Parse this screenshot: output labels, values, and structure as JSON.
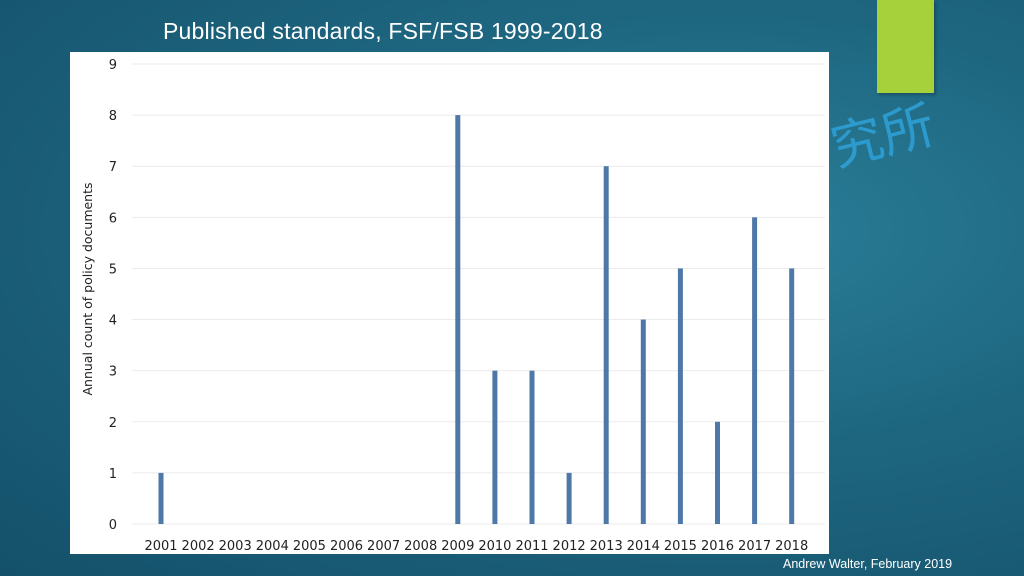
{
  "slide": {
    "title": "Published standards, FSF/FSB 1999-2018",
    "watermark_text": "究所",
    "credit": "Andrew Walter, February 2019",
    "colors": {
      "background": "#1e6680",
      "accent": "#a6d13b",
      "bar": "#4e78a8",
      "watermark": "#2f9fd6"
    }
  },
  "chart_data": {
    "type": "bar",
    "categories": [
      "2001",
      "2002",
      "2003",
      "2004",
      "2005",
      "2006",
      "2007",
      "2008",
      "2009",
      "2010",
      "2011",
      "2012",
      "2013",
      "2014",
      "2015",
      "2016",
      "2017",
      "2018"
    ],
    "values": [
      1,
      0,
      0,
      0,
      0,
      0,
      0,
      0,
      8,
      3,
      3,
      1,
      7,
      4,
      5,
      2,
      6,
      5
    ],
    "ylabel": "Annual count of policy documents",
    "xlabel": "",
    "ylim": [
      0,
      9
    ],
    "yticks": [
      0,
      1,
      2,
      3,
      4,
      5,
      6,
      7,
      8,
      9
    ],
    "grid": true
  }
}
